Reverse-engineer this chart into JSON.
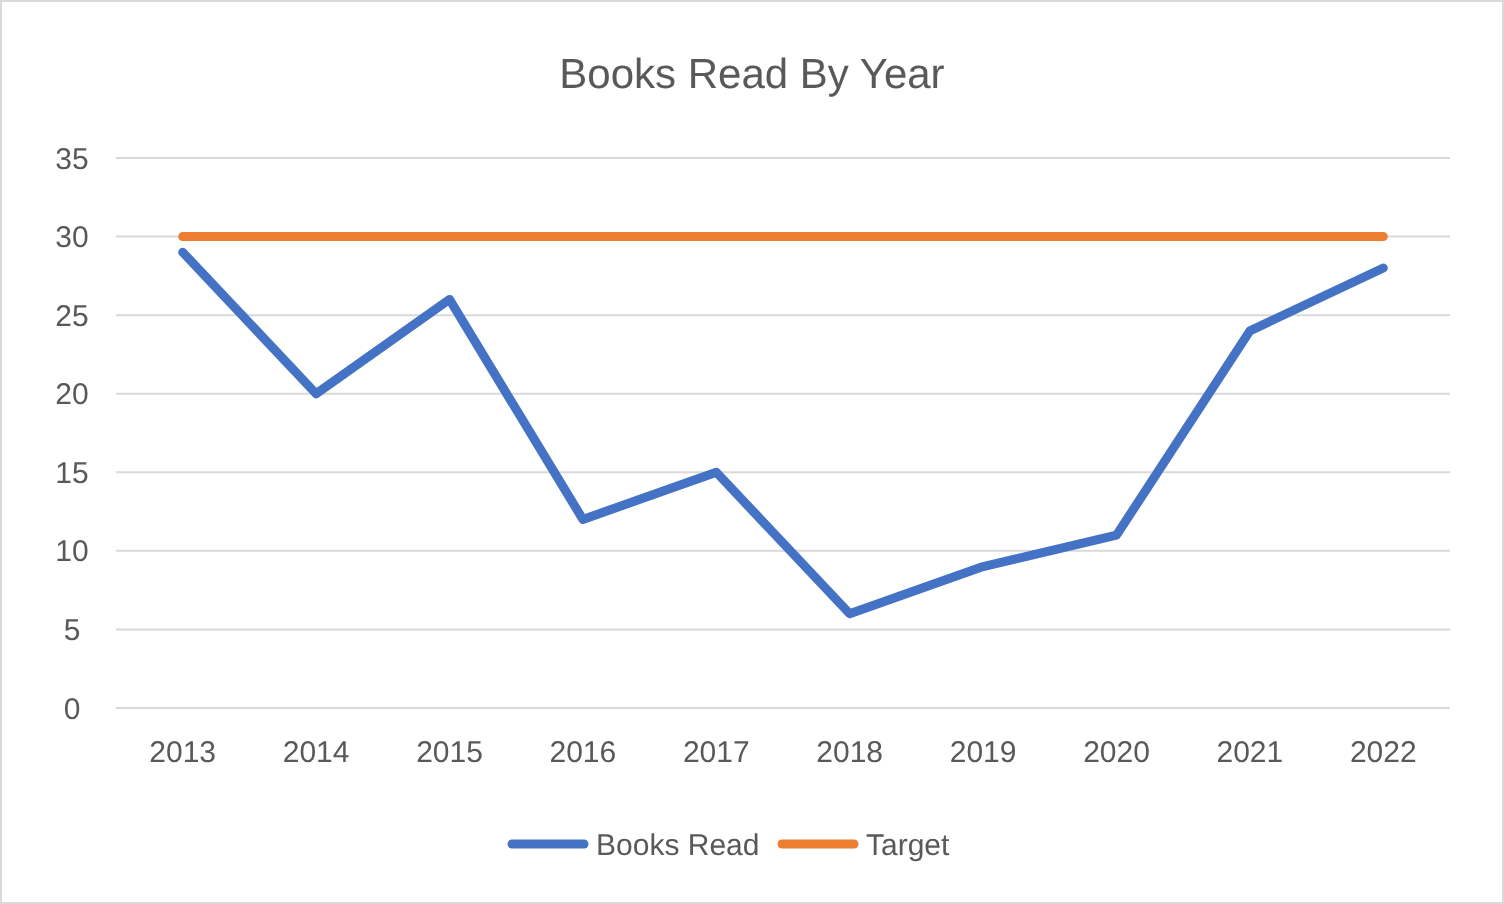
{
  "chart_data": {
    "type": "line",
    "title": "Books Read By Year",
    "categories": [
      "2013",
      "2014",
      "2015",
      "2016",
      "2017",
      "2018",
      "2019",
      "2020",
      "2021",
      "2022"
    ],
    "series": [
      {
        "name": "Books Read",
        "color": "#4472c4",
        "values": [
          29,
          20,
          26,
          12,
          15,
          6,
          9,
          11,
          24,
          28
        ]
      },
      {
        "name": "Target",
        "color": "#ed7d31",
        "values": [
          30,
          30,
          30,
          30,
          30,
          30,
          30,
          30,
          30,
          30
        ]
      }
    ],
    "ylim": [
      0,
      35
    ],
    "yticks": [
      0,
      5,
      10,
      15,
      20,
      25,
      30,
      35
    ],
    "grid": "y",
    "legend": "bottom",
    "marker": "none",
    "line_style": "solid"
  }
}
